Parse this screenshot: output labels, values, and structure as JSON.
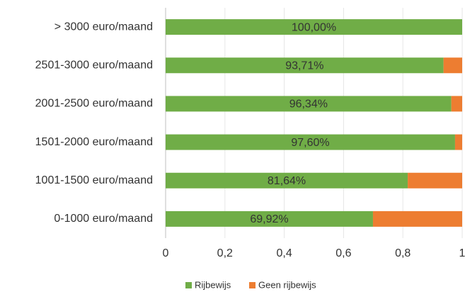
{
  "chart_data": {
    "type": "stacked-bar-horizontal",
    "categories": [
      "> 3000 euro/maand",
      "2501-3000 euro/maand",
      "2001-2500 euro/maand",
      "1501-2000 euro/maand",
      "1001-1500 euro/maand",
      "0-1000 euro/maand"
    ],
    "series": [
      {
        "name": "Rijbewijs",
        "color": "#70ad47",
        "values": [
          1.0,
          0.9371,
          0.9634,
          0.976,
          0.8164,
          0.6992
        ],
        "value_labels": [
          "100,00%",
          "93,71%",
          "96,34%",
          "97,60%",
          "81,64%",
          "69,92%"
        ]
      },
      {
        "name": "Geen rijbewijs",
        "color": "#ed7d31",
        "values": [
          0.0,
          0.0629,
          0.0366,
          0.024,
          0.1836,
          0.3008
        ]
      }
    ],
    "xlim": [
      0,
      1
    ],
    "xticks": [
      0,
      {
        "value": 0.2,
        "label": "0,2"
      },
      {
        "value": 0.4,
        "label": "0,4"
      },
      {
        "value": 0.6,
        "label": "0,6"
      },
      {
        "value": 0.8,
        "label": "0,8"
      },
      1
    ],
    "grid": true,
    "legend": "bottom"
  }
}
